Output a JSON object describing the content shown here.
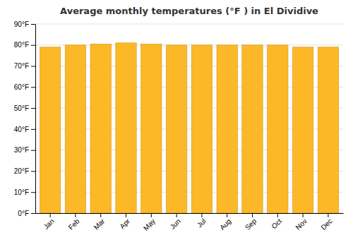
{
  "chart_data": {
    "type": "bar",
    "title": "Average monthly temperatures (°F ) in El Dividive",
    "categories": [
      "Jan",
      "Feb",
      "Mar",
      "Apr",
      "May",
      "Jun",
      "Jul",
      "Aug",
      "Sep",
      "Oct",
      "Nov",
      "Dec"
    ],
    "values": [
      79,
      80,
      80.5,
      81,
      80.5,
      80,
      80,
      80,
      80,
      80,
      79,
      79
    ],
    "color": "#FDB827",
    "ylim": [
      0,
      90
    ],
    "yticks": [
      {
        "value": 0,
        "label": "0°F"
      },
      {
        "value": 10,
        "label": "10°F"
      },
      {
        "value": 20,
        "label": "20°F"
      },
      {
        "value": 30,
        "label": "30°F"
      },
      {
        "value": 40,
        "label": "40°F"
      },
      {
        "value": 50,
        "label": "50°F"
      },
      {
        "value": 60,
        "label": "60°F"
      },
      {
        "value": 70,
        "label": "70°F"
      },
      {
        "value": 80,
        "label": "80°F"
      },
      {
        "value": 90,
        "label": "90°F"
      }
    ],
    "grid": true
  }
}
